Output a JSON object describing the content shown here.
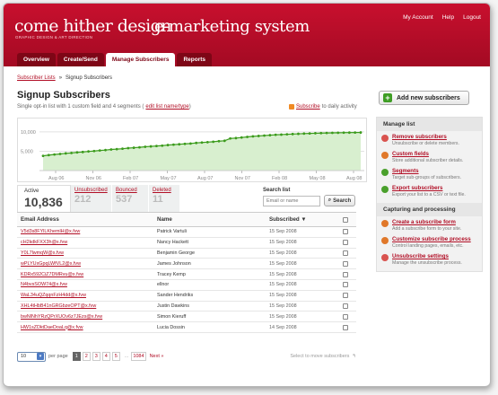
{
  "header": {
    "brand": "come hither design",
    "brand_sub": "GRAPHIC DESIGN & ART DIRECTION",
    "system": "e-marketing system",
    "links": [
      "My Account",
      "Help",
      "Logout"
    ],
    "tabs": [
      "Overview",
      "Create/Send",
      "Manage Subscribers",
      "Reports"
    ],
    "active_tab": "Manage Subscribers"
  },
  "breadcrumb": {
    "parent": "Subscriber Lists",
    "separator": "»",
    "current": "Signup Subscribers"
  },
  "page": {
    "title": "Signup Subscribers",
    "subtitle": "Single opt-in list with 1 custom field and 4 segments (",
    "edit_link": "edit list name/type",
    "subtitle_end": ")",
    "subscribe_link": "Subscribe",
    "subscribe_suffix": "to daily activity"
  },
  "chart_data": {
    "type": "area",
    "y_ticks": [
      "10,000",
      "5,000"
    ],
    "x_ticks": [
      "Aug 06",
      "Nov 06",
      "Feb 07",
      "May 07",
      "Aug 07",
      "Nov 07",
      "Feb 08",
      "May 08",
      "Aug 08"
    ],
    "ylim": [
      0,
      13000
    ],
    "values": [
      3800,
      4000,
      4150,
      4300,
      4450,
      4550,
      4700,
      4800,
      4950,
      5050,
      5200,
      5300,
      5450,
      5550,
      5650,
      5800,
      5900,
      6000,
      6150,
      6250,
      6350,
      6450,
      6600,
      6700,
      6800,
      6900,
      7000,
      7150,
      7250,
      7350,
      7450,
      7600,
      7700,
      8300,
      8400,
      8550,
      8700,
      8850,
      8950,
      9050,
      9150,
      9250,
      9300,
      9380,
      9440,
      9500,
      9560,
      9600,
      9650,
      9690,
      9720,
      9750,
      9780,
      9800,
      9820,
      9840,
      9850
    ],
    "line_color": "#3b9b1c",
    "fill_color": "#d8efcf",
    "grid": true
  },
  "stats": [
    {
      "label": "Active",
      "value": "10,836"
    },
    {
      "label": "Unsubscribed",
      "value": "212"
    },
    {
      "label": "Bounced",
      "value": "537"
    },
    {
      "label": "Deleted",
      "value": "11"
    }
  ],
  "search": {
    "label": "Search list",
    "placeholder": "Email or name",
    "button": "Search"
  },
  "table": {
    "columns": [
      "Email Address",
      "Name",
      "Subscribed ▼"
    ],
    "rows": [
      {
        "email": "V5d3s8FYlLKhemlH@x.fvw",
        "name": "Patrick Vartuli",
        "date": "15 Sep 2008"
      },
      {
        "email": "cH2kdkFXX3h@x.fvw",
        "name": "Nancy Hackett",
        "date": "15 Sep 2008"
      },
      {
        "email": "Y0L7lwmqW@x.fvw",
        "name": "Benjamin George",
        "date": "15 Sep 2008"
      },
      {
        "email": "wPLYUxGpqLWfVL2@x.fvw",
        "name": "James Johnson",
        "date": "15 Sep 2008"
      },
      {
        "email": "KDRx592CiZ7DMRvu@x.fvw",
        "name": "Tracey Kemp",
        "date": "15 Sep 2008"
      },
      {
        "email": "N4bvsSOW74@x.fvw",
        "name": "ellnor",
        "date": "15 Sep 2008"
      },
      {
        "email": "WaL34uQZqqnFzH4dd@x.fvw",
        "name": "Sander Hendriks",
        "date": "15 Sep 2008"
      },
      {
        "email": "XHL4tHbB41nGRGbzeOPT@x.fvw",
        "name": "Justin Dawkins",
        "date": "15 Sep 2008"
      },
      {
        "email": "bwNlNhYRzQPrXUOv6z7JEzs@x.fvw",
        "name": "Simon Kieruff",
        "date": "15 Sep 2008"
      },
      {
        "email": "HW1sZDktDaeDoaLq@x.fvw",
        "name": "Lucia Dossin",
        "date": "14 Sep 2008"
      }
    ]
  },
  "pager": {
    "per_page": "10",
    "per_page_label": "per page",
    "pages": [
      "1",
      "2",
      "3",
      "4",
      "5"
    ],
    "current": "1",
    "ellipsis": "...",
    "last": "1084",
    "next": "Next »",
    "hint": "Select to move subscribers"
  },
  "sidebar": {
    "add_button": "Add new subscribers",
    "manage_heading": "Manage list",
    "manage_items": [
      {
        "title": "Remove subscribers",
        "desc": "Unsubscribe or delete members.",
        "icon": "remove-icon",
        "color": "#d9534f"
      },
      {
        "title": "Custom fields",
        "desc": "Store additional subscriber details.",
        "icon": "fields-icon",
        "color": "#e0782a"
      },
      {
        "title": "Segments",
        "desc": "Target sub-groups of subscribers.",
        "icon": "segments-icon",
        "color": "#4aa02c"
      },
      {
        "title": "Export subscribers",
        "desc": "Export your list to a CSV or text file.",
        "icon": "export-icon",
        "color": "#4aa02c"
      }
    ],
    "capture_heading": "Capturing and processing",
    "capture_items": [
      {
        "title": "Create a subscribe form",
        "desc": "Add a subscribe form to your site.",
        "icon": "form-icon",
        "color": "#e0782a"
      },
      {
        "title": "Customize subscribe process",
        "desc": "Control landing pages, emails, etc.",
        "icon": "customize-icon",
        "color": "#e0782a"
      },
      {
        "title": "Unsubscribe settings",
        "desc": "Manage the unsubscribe process.",
        "icon": "unsubscribe-settings-icon",
        "color": "#d9534f"
      }
    ]
  }
}
